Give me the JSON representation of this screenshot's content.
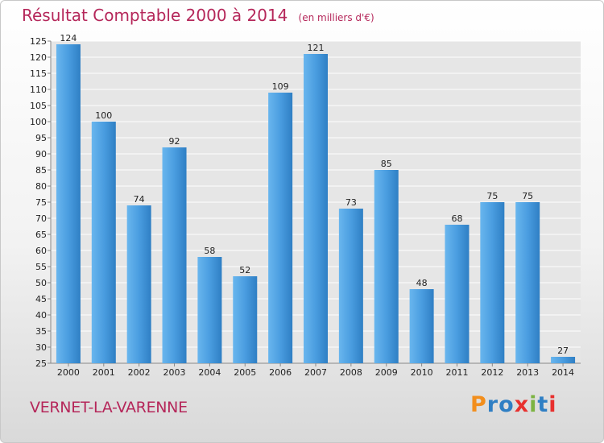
{
  "title": "Résultat Comptable 2000 à 2014",
  "unit_note": "(en milliers d'€)",
  "town": "VERNET-LA-VARENNE",
  "logo": {
    "letters": [
      "P",
      "r",
      "o",
      "x",
      "i",
      "t",
      "i"
    ],
    "colors": [
      "#f28e1c",
      "#2f7fc4",
      "#2f7fc4",
      "#e8302e",
      "#7cb342",
      "#2f7fc4",
      "#e8302e"
    ]
  },
  "colors": {
    "bar": "#4a9de0",
    "bar_light": "#69b6ee",
    "bar_dark": "#2f7fc4",
    "title": "#b5275a"
  },
  "chart_data": {
    "type": "bar",
    "title": "Résultat Comptable 2000 à 2014",
    "ylabel": "(en milliers d'€)",
    "xlabel": "",
    "categories": [
      "2000",
      "2001",
      "2002",
      "2003",
      "2004",
      "2005",
      "2006",
      "2007",
      "2008",
      "2009",
      "2010",
      "2011",
      "2012",
      "2013",
      "2014"
    ],
    "values": [
      124,
      100,
      74,
      92,
      58,
      52,
      109,
      121,
      73,
      85,
      48,
      68,
      75,
      75,
      27
    ],
    "ylim": [
      25,
      125
    ],
    "yticks": [
      25,
      30,
      35,
      40,
      45,
      50,
      55,
      60,
      65,
      70,
      75,
      80,
      85,
      90,
      95,
      100,
      105,
      110,
      115,
      120,
      125
    ],
    "grid": true,
    "data_labels": true
  }
}
